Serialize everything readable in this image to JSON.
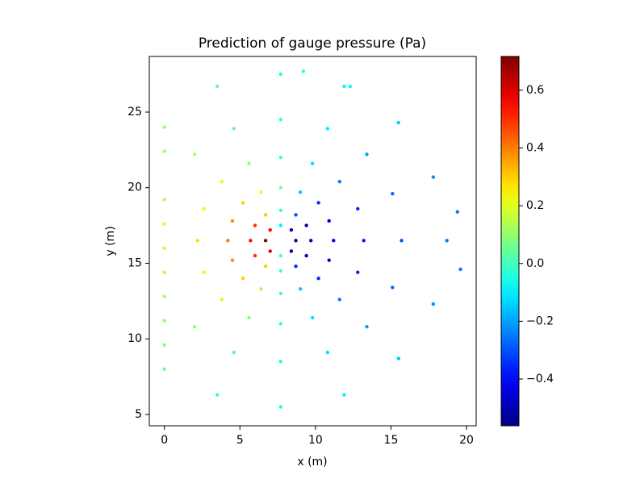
{
  "chart_data": {
    "type": "scatter",
    "title": "Prediction of gauge pressure (Pa)",
    "xlabel": "x (m)",
    "ylabel": "y (m)",
    "x": [
      8.7,
      8.4,
      7.7,
      7.0,
      6.7,
      7.0,
      7.7,
      8.4,
      9.7,
      9.4,
      8.7,
      7.7,
      6.7,
      6.0,
      5.7,
      6.0,
      6.7,
      7.7,
      8.7,
      9.4,
      11.2,
      10.9,
      10.2,
      9.0,
      7.7,
      6.4,
      5.2,
      4.5,
      4.2,
      4.5,
      5.2,
      6.4,
      7.7,
      9.0,
      10.2,
      10.9,
      13.2,
      12.8,
      11.6,
      9.8,
      7.7,
      5.6,
      3.8,
      2.6,
      2.2,
      2.6,
      3.8,
      5.6,
      7.7,
      9.8,
      11.6,
      12.8,
      15.7,
      15.1,
      13.4,
      10.8,
      7.7,
      4.6,
      2.0,
      2.0,
      4.6,
      7.7,
      10.8,
      13.4,
      15.1,
      0,
      0,
      0,
      0,
      0,
      0,
      0,
      0,
      0,
      0,
      18.7,
      17.8,
      15.5,
      11.9,
      7.7,
      3.5,
      3.5,
      7.7,
      11.9,
      15.5,
      17.8,
      19.6,
      19.4,
      9.2,
      12.3
    ],
    "y": [
      16.5,
      17.2,
      17.5,
      17.2,
      16.5,
      15.8,
      15.5,
      15.8,
      16.5,
      17.5,
      18.2,
      18.5,
      18.2,
      17.5,
      16.5,
      15.5,
      14.8,
      14.5,
      14.8,
      15.5,
      16.5,
      17.8,
      19.0,
      19.7,
      20.0,
      19.7,
      19.0,
      17.8,
      16.5,
      15.2,
      14.0,
      13.3,
      13.0,
      13.3,
      14.0,
      15.2,
      16.5,
      18.6,
      20.4,
      21.6,
      22.0,
      21.6,
      20.4,
      18.6,
      16.5,
      14.4,
      12.6,
      11.4,
      11.0,
      11.4,
      12.6,
      14.4,
      16.5,
      19.6,
      22.2,
      23.9,
      24.5,
      23.9,
      22.2,
      10.8,
      9.1,
      8.5,
      9.1,
      10.8,
      13.4,
      24,
      22.4,
      19.2,
      17.6,
      16,
      14.4,
      12.8,
      11.2,
      9.6,
      8,
      16.5,
      20.7,
      24.3,
      26.7,
      27.5,
      26.7,
      6.3,
      5.5,
      6.3,
      8.7,
      12.3,
      14.6,
      18.4,
      27.7,
      26.7
    ],
    "values": [
      -0.55,
      -0.45,
      -0.1,
      0.55,
      0.7,
      0.6,
      0.0,
      -0.5,
      -0.5,
      -0.5,
      -0.3,
      0.0,
      0.3,
      0.5,
      0.55,
      0.5,
      0.3,
      0.0,
      -0.35,
      -0.5,
      -0.45,
      -0.45,
      -0.35,
      -0.15,
      0.05,
      0.2,
      0.3,
      0.38,
      0.4,
      0.38,
      0.3,
      0.15,
      0.0,
      -0.15,
      -0.35,
      -0.45,
      -0.38,
      -0.35,
      -0.25,
      -0.12,
      0.0,
      0.1,
      0.2,
      0.25,
      0.28,
      0.25,
      0.18,
      0.08,
      -0.02,
      -0.12,
      -0.25,
      -0.35,
      -0.3,
      -0.27,
      -0.2,
      -0.1,
      -0.02,
      0.05,
      0.12,
      0.1,
      0.02,
      -0.05,
      -0.12,
      -0.2,
      -0.27,
      0.1,
      0.12,
      0.15,
      0.17,
      0.17,
      0.15,
      0.13,
      0.1,
      0.07,
      0.05,
      -0.25,
      -0.22,
      -0.15,
      -0.08,
      -0.03,
      0.03,
      0.0,
      -0.05,
      -0.1,
      -0.15,
      -0.22,
      -0.25,
      -0.25,
      -0.05,
      -0.08
    ],
    "colormap": "jet",
    "xlim": [
      -1.0,
      20.64
    ],
    "ylim": [
      4.25,
      28.68
    ],
    "xticks": [
      0,
      5,
      10,
      15,
      20
    ],
    "yticks": [
      5,
      10,
      15,
      20,
      25
    ],
    "clim": [
      -0.562,
      0.717
    ],
    "cticks": [
      {
        "value": -0.4,
        "label": "−0.4"
      },
      {
        "value": -0.2,
        "label": "−0.2"
      },
      {
        "value": 0.0,
        "label": "0.0"
      },
      0.2,
      0.4,
      0.6
    ]
  }
}
